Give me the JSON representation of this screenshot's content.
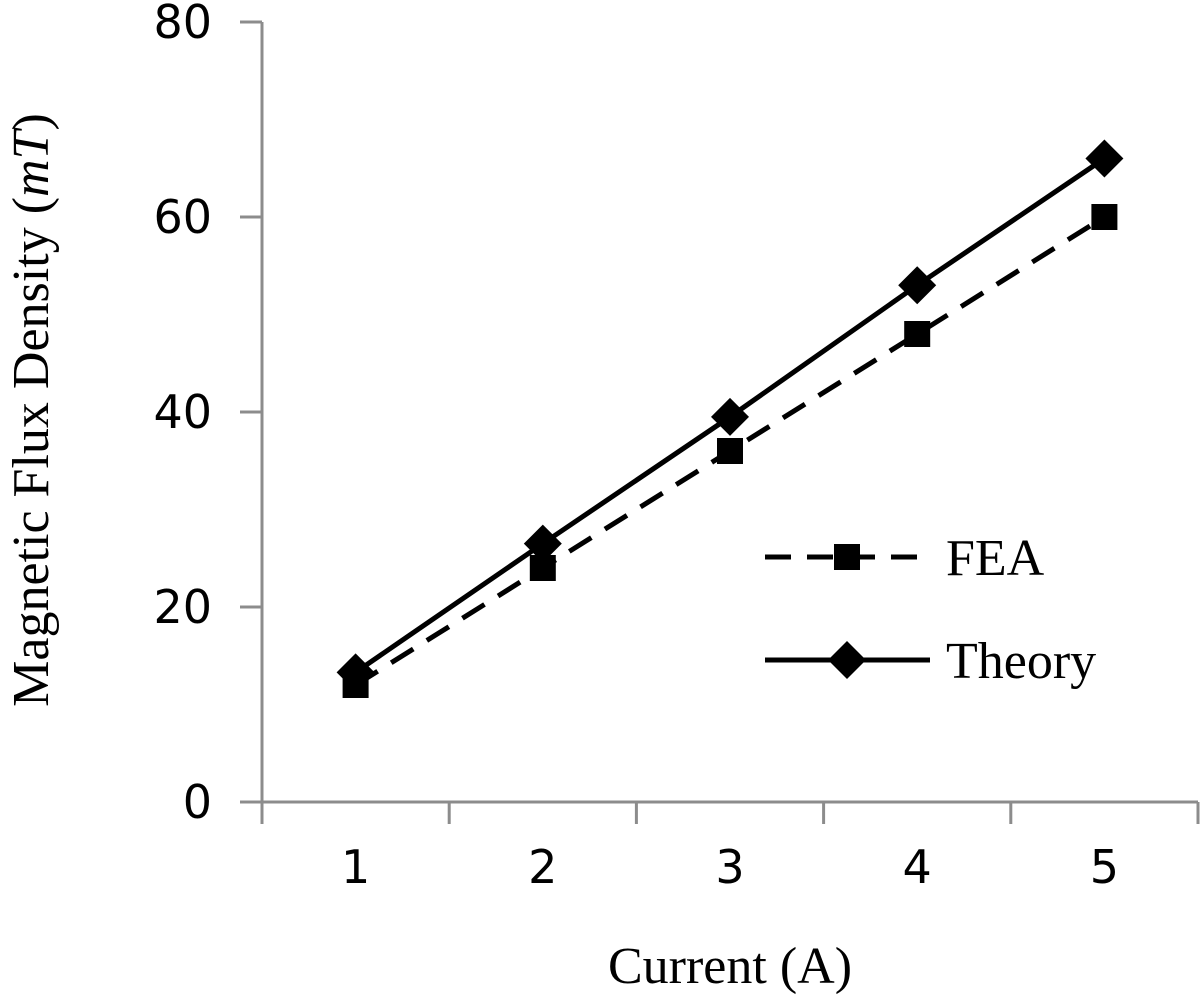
{
  "chart_data": {
    "type": "line",
    "categories": [
      "1",
      "2",
      "3",
      "4",
      "5"
    ],
    "xlabel": "Current (A)",
    "ylabel_main": "Magnetic Flux Density (",
    "ylabel_unit": "mT",
    "ylabel_close": ")",
    "ylim": [
      0,
      80
    ],
    "yticks": [
      0,
      20,
      40,
      60,
      80
    ],
    "grid": false,
    "legend_position": "right",
    "series": [
      {
        "name": "FEA",
        "values": [
          12,
          24,
          36,
          48,
          60
        ],
        "line_style": "dashed",
        "marker": "square",
        "color": "#000000"
      },
      {
        "name": "Theory",
        "values": [
          13.3,
          26.5,
          39.5,
          53,
          66
        ],
        "line_style": "solid",
        "marker": "diamond",
        "color": "#000000"
      }
    ]
  }
}
